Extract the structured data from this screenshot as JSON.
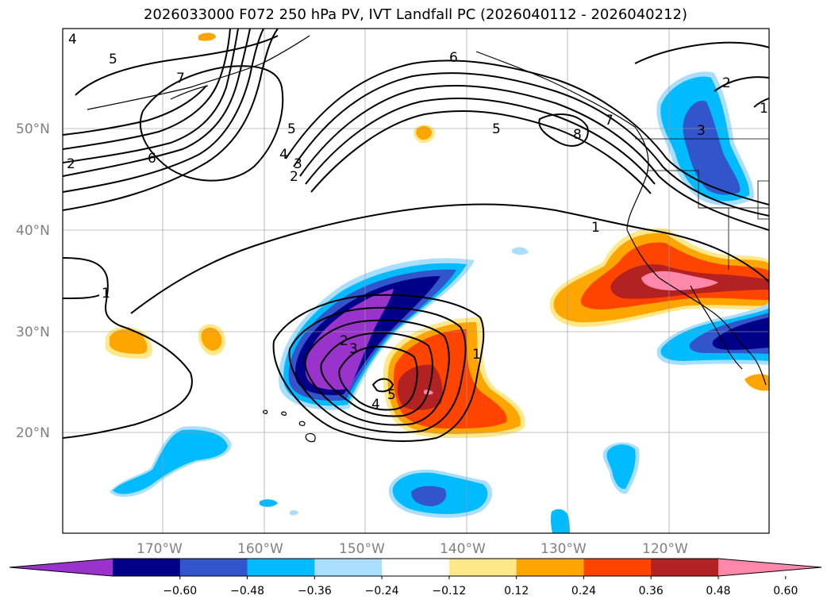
{
  "title": "2026033000 F072 250 hPa PV, IVT Landfall PC (2026040112 - 2026040212)",
  "lat_labels": [
    "50°N",
    "40°N",
    "30°N",
    "20°N"
  ],
  "lon_labels": [
    "170°W",
    "160°W",
    "150°W",
    "140°W",
    "130°W",
    "120°W"
  ],
  "colorbar": {
    "tick_labels": [
      "−0.60",
      "−0.48",
      "−0.36",
      "−0.24",
      "−0.12",
      "0.12",
      "0.24",
      "0.36",
      "0.48",
      "0.60"
    ],
    "colors": [
      "#9933cc",
      "#000088",
      "#3355cc",
      "#00bbff",
      "#aadeff",
      "#ffffff",
      "#ffe88a",
      "#ffa500",
      "#ff4400",
      "#b22222",
      "#ff88aa"
    ]
  },
  "contour_labels": [
    "1",
    "2",
    "3",
    "4",
    "5",
    "6",
    "7",
    "8"
  ],
  "shading_colors": {
    "neg_strong": "#9933cc",
    "neg_navy": "#000088",
    "neg_blue": "#3355cc",
    "neg_cyan": "#00bbff",
    "neg_light": "#aadeff",
    "pos_yellow": "#ffe88a",
    "pos_orange": "#ffa500",
    "pos_red": "#ff4400",
    "pos_dark": "#b22222",
    "pos_pink": "#ff88aa"
  }
}
